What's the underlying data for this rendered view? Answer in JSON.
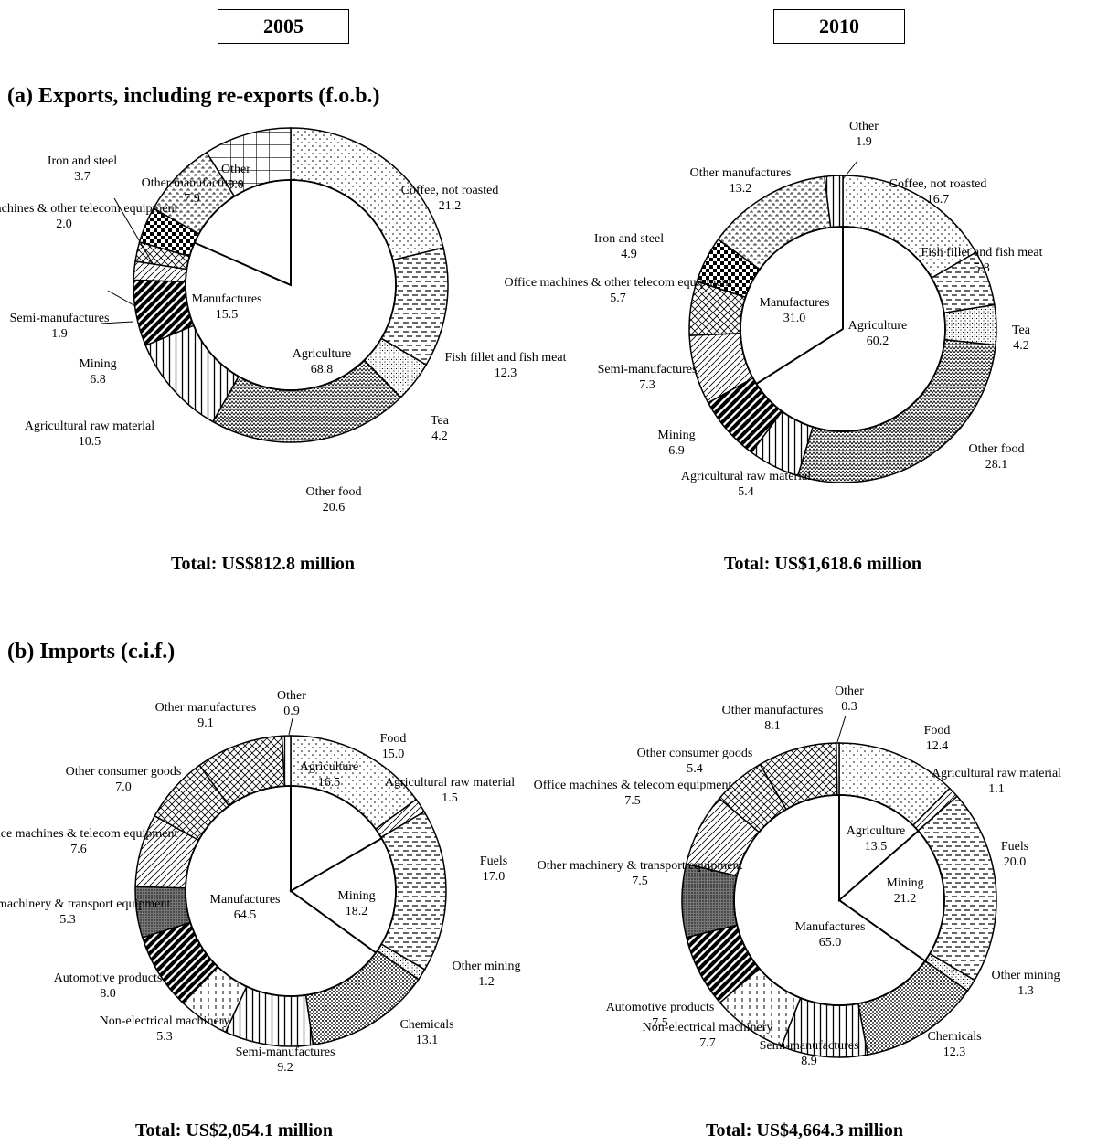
{
  "years": [
    "2005",
    "2010"
  ],
  "sections": {
    "exports_title": "(a)    Exports, including re-exports (f.o.b.)",
    "imports_title": "(b)    Imports (c.i.f.)"
  },
  "totals": {
    "exports_2005": "Total:   US$812.8 million",
    "exports_2010": "Total:  US$1,618.6 million",
    "imports_2005": "Total:   US$2,054.1 million",
    "imports_2010": "Total:   US$4,664.3 million"
  },
  "chart_data": [
    {
      "type": "pie",
      "title": "(a) Exports, including re-exports (f.o.b.) 2005",
      "inner": [
        {
          "name": "Agriculture",
          "value": 68.8
        },
        {
          "name": "Manufactures",
          "value": 15.5
        }
      ],
      "outer": [
        {
          "name": "Coffee, not roasted",
          "value": 21.2
        },
        {
          "name": "Fish fillet and fish meat",
          "value": 12.3
        },
        {
          "name": "Tea",
          "value": 4.2
        },
        {
          "name": "Other food",
          "value": 20.6
        },
        {
          "name": "Agricultural raw material",
          "value": 10.5
        },
        {
          "name": "Mining",
          "value": 6.8
        },
        {
          "name": "Semi-manufactures",
          "value": 1.9
        },
        {
          "name": "Office machines & other telecom equipment",
          "value": 2.0
        },
        {
          "name": "Iron and steel",
          "value": 3.7
        },
        {
          "name": "Other manufactures",
          "value": 7.9
        },
        {
          "name": "Other",
          "value": 9.0
        }
      ]
    },
    {
      "type": "pie",
      "title": "(a) Exports, including re-exports (f.o.b.) 2010",
      "inner": [
        {
          "name": "Agriculture",
          "value": 60.2
        },
        {
          "name": "Manufactures",
          "value": 31.0
        }
      ],
      "outer": [
        {
          "name": "Coffee, not roasted",
          "value": 16.7
        },
        {
          "name": "Fish fillet and fish meat",
          "value": 5.8
        },
        {
          "name": "Tea",
          "value": 4.2
        },
        {
          "name": "Other food",
          "value": 28.1
        },
        {
          "name": "Agricultural raw material",
          "value": 5.4
        },
        {
          "name": "Mining",
          "value": 6.9
        },
        {
          "name": "Semi-manufactures",
          "value": 7.3
        },
        {
          "name": "Office machines & other telecom equipment",
          "value": 5.7
        },
        {
          "name": "Iron and steel",
          "value": 4.9
        },
        {
          "name": "Other manufactures",
          "value": 13.2
        },
        {
          "name": "Other",
          "value": 1.9
        }
      ]
    },
    {
      "type": "pie",
      "title": "(b) Imports (c.i.f.) 2005",
      "inner": [
        {
          "name": "Agriculture",
          "value": 16.5
        },
        {
          "name": "Mining",
          "value": 18.2
        },
        {
          "name": "Manufactures",
          "value": 64.5
        }
      ],
      "outer": [
        {
          "name": "Food",
          "value": 15.0
        },
        {
          "name": "Agricultural raw material",
          "value": 1.5
        },
        {
          "name": "Fuels",
          "value": 17.0
        },
        {
          "name": "Other mining",
          "value": 1.2
        },
        {
          "name": "Chemicals",
          "value": 13.1
        },
        {
          "name": "Semi-manufactures",
          "value": 9.2
        },
        {
          "name": "Non-electrical machinery",
          "value": 5.3
        },
        {
          "name": "Automotive products",
          "value": 8.0
        },
        {
          "name": "Other machinery & transport equipment",
          "value": 5.3
        },
        {
          "name": "Office machines & telecom equipment",
          "value": 7.6
        },
        {
          "name": "Other consumer goods",
          "value": 7.0
        },
        {
          "name": "Other manufactures",
          "value": 9.1
        },
        {
          "name": "Other",
          "value": 0.9
        }
      ]
    },
    {
      "type": "pie",
      "title": "(b) Imports (c.i.f.) 2010",
      "inner": [
        {
          "name": "Agriculture",
          "value": 13.5
        },
        {
          "name": "Mining",
          "value": 21.2
        },
        {
          "name": "Manufactures",
          "value": 65.0
        }
      ],
      "outer": [
        {
          "name": "Food",
          "value": 12.4
        },
        {
          "name": "Agricultural raw material",
          "value": 1.1
        },
        {
          "name": "Fuels",
          "value": 20.0
        },
        {
          "name": "Other mining",
          "value": 1.3
        },
        {
          "name": "Chemicals",
          "value": 12.3
        },
        {
          "name": "Semi-manufactures",
          "value": 8.9
        },
        {
          "name": "Non-electrical machinery",
          "value": 7.7
        },
        {
          "name": "Automotive products",
          "value": 7.5
        },
        {
          "name": "Other machinery & transport equipment",
          "value": 7.5
        },
        {
          "name": "Office machines & telecom equipment",
          "value": 7.5
        },
        {
          "name": "Other consumer goods",
          "value": 5.4
        },
        {
          "name": "Other manufactures",
          "value": 8.1
        },
        {
          "name": "Other",
          "value": 0.3
        }
      ]
    }
  ]
}
